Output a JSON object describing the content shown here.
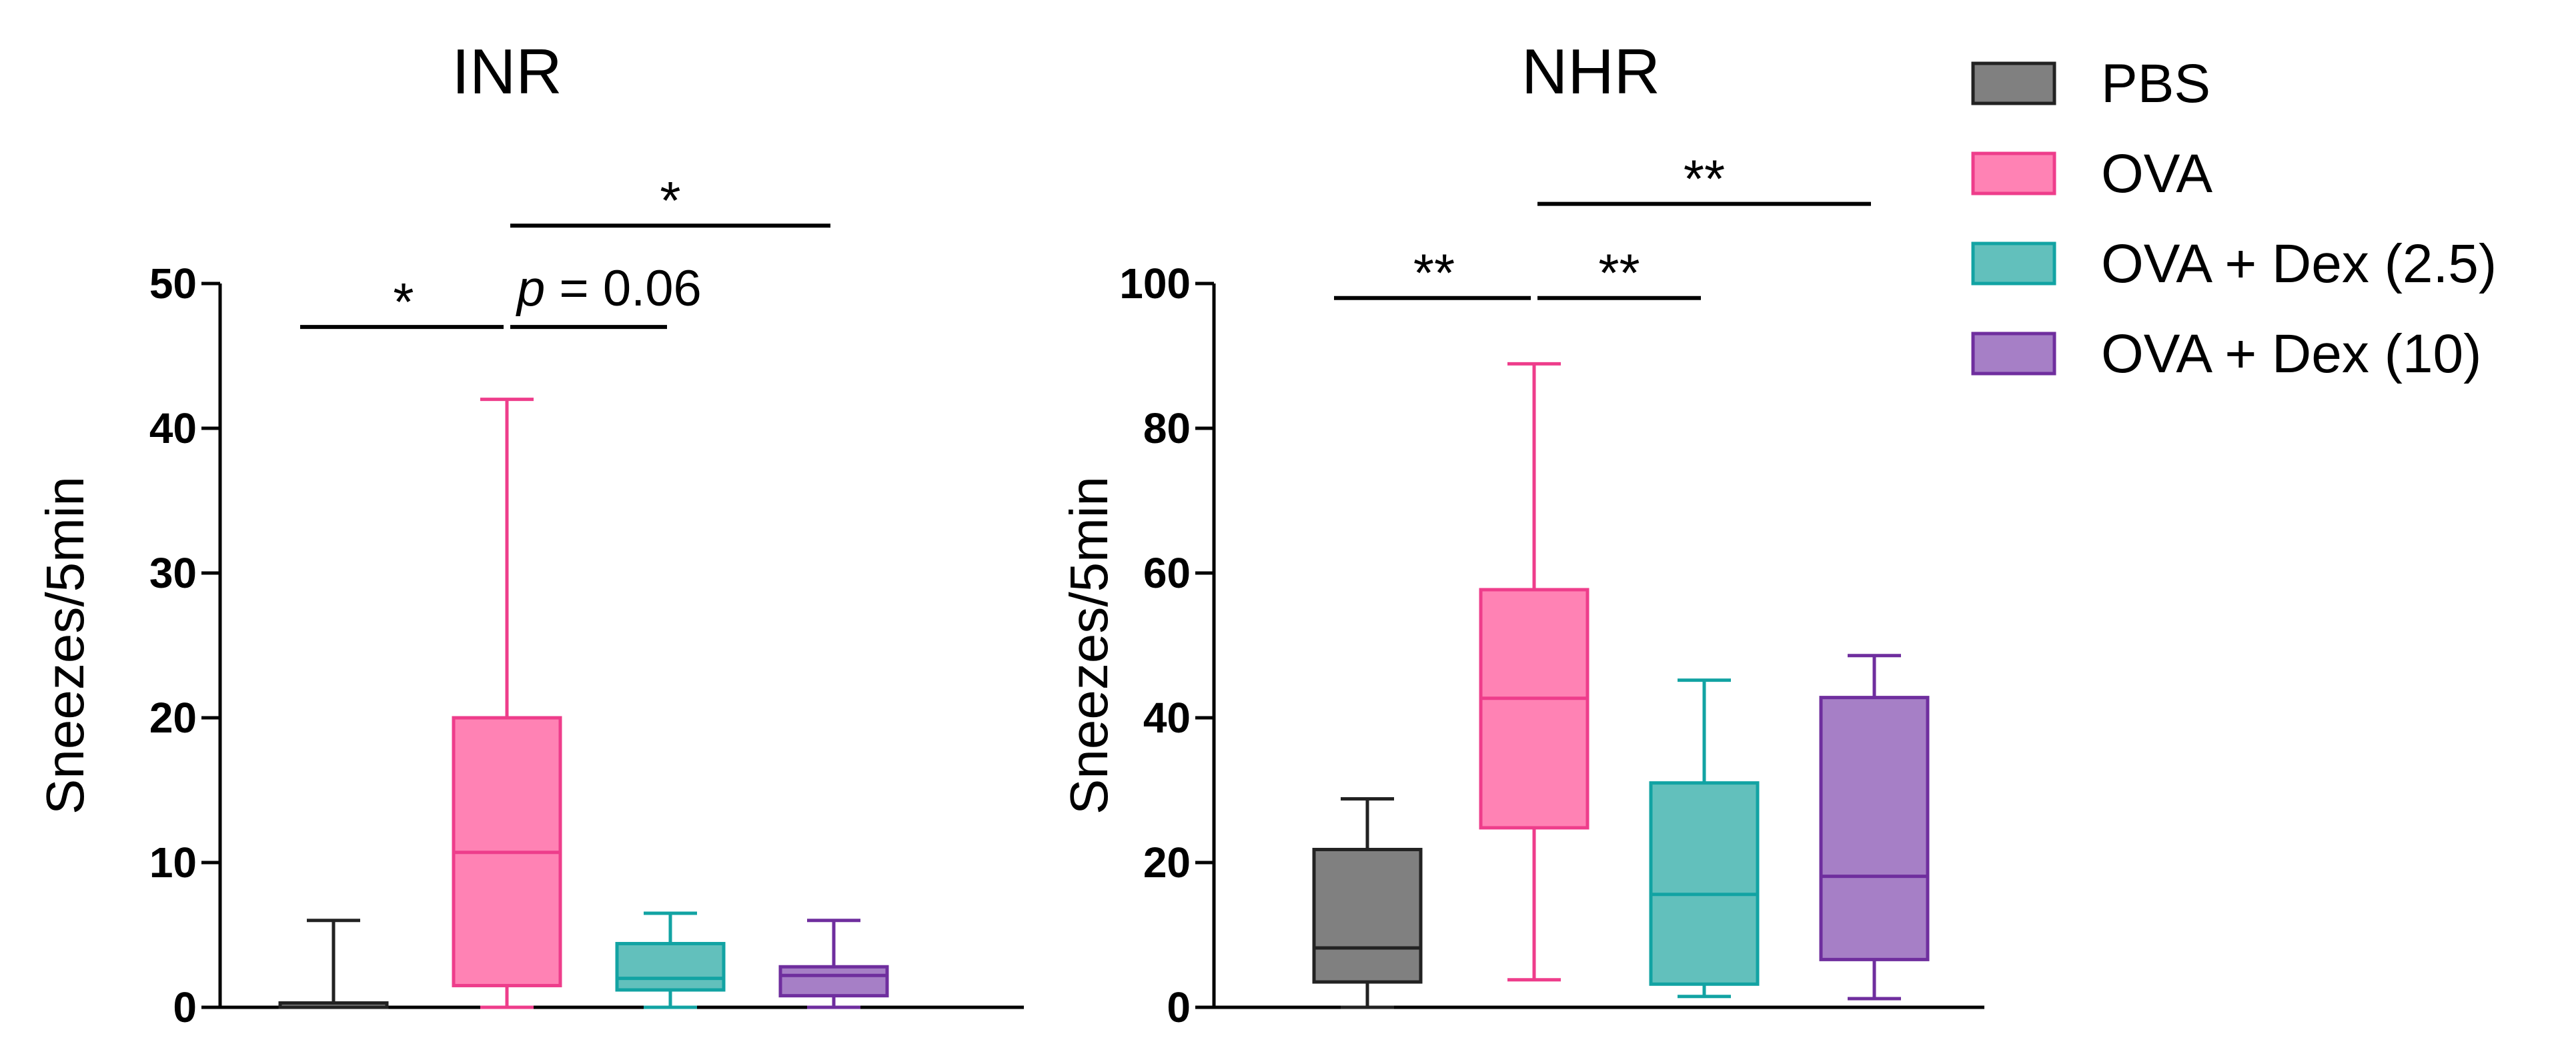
{
  "chart_data": [
    {
      "type": "box",
      "title": "INR",
      "xlabel": "",
      "ylabel": "Sneezes/5min",
      "ylim": [
        0,
        50
      ],
      "yticks": [
        0,
        10,
        20,
        30,
        40,
        50
      ],
      "groups": [
        {
          "name": "PBS",
          "min": 0,
          "q1": 0,
          "median": 0,
          "q3": 0.3,
          "max": 6
        },
        {
          "name": "OVA",
          "min": 0,
          "q1": 1.5,
          "median": 10.7,
          "q3": 20,
          "max": 42
        },
        {
          "name": "OVA + Dex (2.5)",
          "min": 0,
          "q1": 1.2,
          "median": 2,
          "q3": 4.4,
          "max": 6.5
        },
        {
          "name": "OVA + Dex (10)",
          "min": 0,
          "q1": 0.8,
          "median": 2.2,
          "q3": 2.8,
          "max": 6
        }
      ],
      "annotations": [
        {
          "text": "*",
          "from": 0,
          "to": 1,
          "level": 47
        },
        {
          "text": "p = 0.06",
          "italic_prefix": "p",
          "rest": " = 0.06",
          "from": 1,
          "to": 2,
          "level": 47
        },
        {
          "text": "*",
          "from": 1,
          "to": 3,
          "level": 54
        }
      ]
    },
    {
      "type": "box",
      "title": "NHR",
      "xlabel": "",
      "ylabel": "Sneezes/5min",
      "ylim": [
        0,
        100
      ],
      "yticks": [
        0,
        20,
        40,
        60,
        80,
        100
      ],
      "groups": [
        {
          "name": "PBS",
          "min": 0,
          "q1": 3.5,
          "median": 8.2,
          "q3": 21.8,
          "max": 28.8
        },
        {
          "name": "OVA",
          "min": 3.8,
          "q1": 24.8,
          "median": 42.7,
          "q3": 57.7,
          "max": 88.9
        },
        {
          "name": "OVA + Dex (2.5)",
          "min": 1.5,
          "q1": 3.2,
          "median": 15.6,
          "q3": 31,
          "max": 45.2
        },
        {
          "name": "OVA + Dex (10)",
          "min": 1.2,
          "q1": 6.6,
          "median": 18.1,
          "q3": 42.8,
          "max": 48.6
        }
      ],
      "annotations": [
        {
          "text": "**",
          "from": 0,
          "to": 1,
          "level": 98
        },
        {
          "text": "**",
          "from": 1,
          "to": 2,
          "level": 98
        },
        {
          "text": "**",
          "from": 1,
          "to": 3,
          "level": 111
        }
      ]
    }
  ],
  "legend": [
    {
      "label": "PBS",
      "fill": "#808080",
      "stroke": "#222222"
    },
    {
      "label": "OVA",
      "fill": "#ff82b4",
      "stroke": "#ee3d8b"
    },
    {
      "label": "OVA + Dex (2.5)",
      "fill": "#62c0bc",
      "stroke": "#12a3a3"
    },
    {
      "label": "OVA + Dex (10)",
      "fill": "#a67fc6",
      "stroke": "#6f2e9e"
    }
  ]
}
